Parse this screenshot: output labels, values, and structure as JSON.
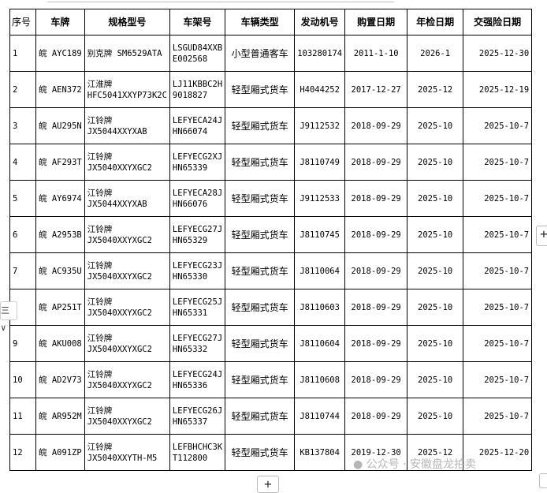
{
  "table": {
    "headers": [
      "序号",
      "车牌",
      "规格型号",
      "车架号",
      "车辆类型",
      "发动机号",
      "购置日期",
      "年检日期",
      "交强险日期"
    ],
    "rows": [
      {
        "no": "1",
        "plate": "皖 AYC189",
        "model_brand": "别克牌 SM6529ATA",
        "model_code": "",
        "vin1": "LSGUD84XXB",
        "vin2": "E002568",
        "type": "小型普通客车",
        "engine": "103280174",
        "purchase": "2011-1-10",
        "inspection": "2026-1",
        "insurance": "2025-12-30"
      },
      {
        "no": "2",
        "plate": "皖 AEN372",
        "model_brand": "江淮牌",
        "model_code": "HFC5041XXYP73K2C",
        "vin1": "LJ11KBBC2H",
        "vin2": "9018827",
        "type": "轻型厢式货车",
        "engine": "H4044252",
        "purchase": "2017-12-27",
        "inspection": "2025-12",
        "insurance": "2025-12-19"
      },
      {
        "no": "3",
        "plate": "皖 AU295N",
        "model_brand": "江铃牌",
        "model_code": "JX5044XXYXAB",
        "vin1": "LEFYECA24J",
        "vin2": "HN66074",
        "type": "轻型厢式货车",
        "engine": "J9112532",
        "purchase": "2018-09-29",
        "inspection": "2025-10",
        "insurance": "2025-10-7"
      },
      {
        "no": "4",
        "plate": "皖 AF293T",
        "model_brand": "江铃牌",
        "model_code": "JX5040XXYXGC2",
        "vin1": "LEFYECG2XJ",
        "vin2": "HN65339",
        "type": "轻型厢式货车",
        "engine": "J8110749",
        "purchase": "2018-09-29",
        "inspection": "2025-10",
        "insurance": "2025-10-7"
      },
      {
        "no": "5",
        "plate": "皖 AY6974",
        "model_brand": "江铃牌",
        "model_code": "JX5044XXYXAB",
        "vin1": "LEFYECA28J",
        "vin2": "HN66076",
        "type": "轻型厢式货车",
        "engine": "J9112533",
        "purchase": "2018-09-29",
        "inspection": "2025-10",
        "insurance": "2025-10-7"
      },
      {
        "no": "6",
        "plate": "皖 A2953B",
        "model_brand": "江铃牌",
        "model_code": "JX5040XXYXGC2",
        "vin1": "LEFYECG27J",
        "vin2": "HN65329",
        "type": "轻型厢式货车",
        "engine": "J8110745",
        "purchase": "2018-09-29",
        "inspection": "2025-10",
        "insurance": "2025-10-7"
      },
      {
        "no": "7",
        "plate": "皖 AC935U",
        "model_brand": "江铃牌",
        "model_code": "JX5040XXYXGC2",
        "vin1": "LEFYECG23J",
        "vin2": "HN65330",
        "type": "轻型厢式货车",
        "engine": "J8110064",
        "purchase": "2018-09-29",
        "inspection": "2025-10",
        "insurance": "2025-10-7"
      },
      {
        "no": "",
        "plate": "皖 AP251T",
        "model_brand": "江铃牌",
        "model_code": "JX5040XXYXGC2",
        "vin1": "LEFYECG25J",
        "vin2": "HN65331",
        "type": "轻型厢式货车",
        "engine": "J8110603",
        "purchase": "2018-09-29",
        "inspection": "2025-10",
        "insurance": "2025-10-7"
      },
      {
        "no": "9",
        "plate": "皖 AKU008",
        "model_brand": "江铃牌",
        "model_code": "JX5040XXYXGC2",
        "vin1": "LEFYECG27J",
        "vin2": "HN65332",
        "type": "轻型厢式货车",
        "engine": "J8110604",
        "purchase": "2018-09-29",
        "inspection": "2025-10",
        "insurance": "2025-10-7"
      },
      {
        "no": "10",
        "plate": "皖 AD2V73",
        "model_brand": "江铃牌",
        "model_code": "JX5040XXYXGC2",
        "vin1": "LEFYECG24J",
        "vin2": "HN65336",
        "type": "轻型厢式货车",
        "engine": "J8110608",
        "purchase": "2018-09-29",
        "inspection": "2025-10",
        "insurance": "2025-10-7"
      },
      {
        "no": "11",
        "plate": "皖 AR952M",
        "model_brand": "江铃牌",
        "model_code": "JX5040XXYXGC2",
        "vin1": "LEFYECG26J",
        "vin2": "HN65337",
        "type": "轻型厢式货车",
        "engine": "J8110744",
        "purchase": "2018-09-29",
        "inspection": "2025-10",
        "insurance": "2025-10-7"
      },
      {
        "no": "12",
        "plate": "皖 A091ZP",
        "model_brand": "江铃牌",
        "model_code": "JX5040XXYTH-M5",
        "vin1": "LEFBHCHC3K",
        "vin2": "T112800",
        "type": "轻型厢式货车",
        "engine": "KB137804",
        "purchase": "2019-12-30",
        "inspection": "2025-12",
        "insurance": "2025-12-20"
      }
    ]
  },
  "watermark": "公众号 · 安徽盘龙拍卖",
  "controls": {
    "add_icon": "+",
    "handle_icon": "三 ∨"
  }
}
